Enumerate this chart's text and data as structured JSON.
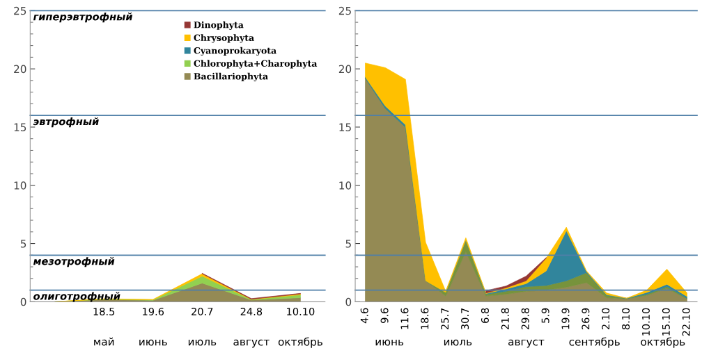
{
  "chart_data": [
    {
      "type": "area",
      "stacked": true,
      "categories": [
        null,
        "18.5",
        "19.6",
        "20.7",
        "24.8",
        "10.10"
      ],
      "series": [
        {
          "name": "Bacillariophyta",
          "color": "#948a54",
          "values": [
            0,
            0.2,
            0.12,
            1.6,
            0.15,
            0.35
          ]
        },
        {
          "name": "Chlorophyta+Charophyta",
          "color": "#92d050",
          "values": [
            0,
            0.03,
            0.05,
            0.6,
            0.05,
            0.25
          ]
        },
        {
          "name": "Cyanoprokaryota",
          "color": "#31859c",
          "values": [
            null,
            null,
            null,
            null,
            null,
            null
          ]
        },
        {
          "name": "Chrysophyta",
          "color": "#ffc000",
          "values": [
            0,
            0.02,
            0.03,
            0.2,
            0.02,
            0.07
          ]
        },
        {
          "name": "Dinophyta",
          "color": "#953735",
          "values": [
            null,
            null,
            null,
            0.05,
            0.05,
            0.05
          ]
        }
      ],
      "ylim": [
        0,
        25
      ],
      "yticks": [
        0,
        5,
        10,
        15,
        20,
        25
      ],
      "grid": false,
      "legend": "top right",
      "ref_lines": [
        {
          "axis": "y",
          "value": 1,
          "color": "#4f7fa8",
          "label": "олиготрофный"
        },
        {
          "axis": "y",
          "value": 4,
          "color": "#4f7fa8",
          "label": "мезотрофный"
        },
        {
          "axis": "y",
          "value": 16,
          "color": "#4f7fa8",
          "label": "эвтрофный"
        },
        {
          "axis": "y",
          "value": 25,
          "color": "#4f7fa8",
          "label": "гиперэвтрофный"
        }
      ],
      "annotations": [
        "май",
        "июнь",
        "июль",
        "август",
        "октябрь"
      ]
    },
    {
      "type": "area",
      "stacked": true,
      "categories": [
        "4.6",
        "9.6",
        "11.6",
        "18.6",
        "25.7",
        "30.7",
        "6.8",
        "21.8",
        "29.8",
        "5.9",
        "19.9",
        "26.9",
        "2.10",
        "8.10",
        "10.10",
        "15.10",
        "22.10"
      ],
      "series": [
        {
          "color": "#948a54",
          "values": [
            19.2,
            16.6,
            15.0,
            1.8,
            0.5,
            4.3,
            0.5,
            0.65,
            0.9,
            1.0,
            1.25,
            1.65,
            0.35,
            0.25,
            0.55,
            1.15,
            0.25
          ]
        },
        {
          "color": "#77933c",
          "values": [
            0,
            0,
            0,
            0,
            0.3,
            1.0,
            0.15,
            0.25,
            0.4,
            0.4,
            0.55,
            0.85,
            0.2,
            0.03,
            0.1,
            0.15,
            0.05
          ]
        },
        {
          "color": "#31859c",
          "values": [
            0.1,
            0.2,
            0.2,
            0,
            0,
            0,
            0.05,
            0.2,
            0.25,
            1.25,
            4.3,
            0.1,
            0.05,
            0.02,
            0.15,
            0.2,
            0.15
          ]
        },
        {
          "color": "#ffc000",
          "values": [
            1.2,
            3.3,
            3.9,
            3.3,
            0.1,
            0.2,
            0.05,
            0.1,
            0.25,
            1.1,
            0.3,
            0.05,
            0.15,
            0,
            0.2,
            1.3,
            0.3
          ]
        },
        {
          "color": "#953735",
          "values": [
            null,
            null,
            null,
            null,
            null,
            null,
            0.2,
            0.15,
            0.4,
            0.05,
            null,
            null,
            null,
            null,
            null,
            null,
            null
          ]
        }
      ],
      "ylim": [
        0,
        25
      ],
      "yticks": [
        0,
        5,
        10,
        15,
        20,
        25
      ],
      "grid": false,
      "ref_lines": [
        {
          "axis": "y",
          "value": 1,
          "color": "#4f7fa8"
        },
        {
          "axis": "y",
          "value": 4,
          "color": "#4f7fa8"
        },
        {
          "axis": "y",
          "value": 16,
          "color": "#4f7fa8"
        },
        {
          "axis": "y",
          "value": 25,
          "color": "#4f7fa8"
        }
      ],
      "annotations": [
        "июнь",
        "июль",
        "август",
        "сентябрь",
        "октябрь"
      ]
    }
  ]
}
